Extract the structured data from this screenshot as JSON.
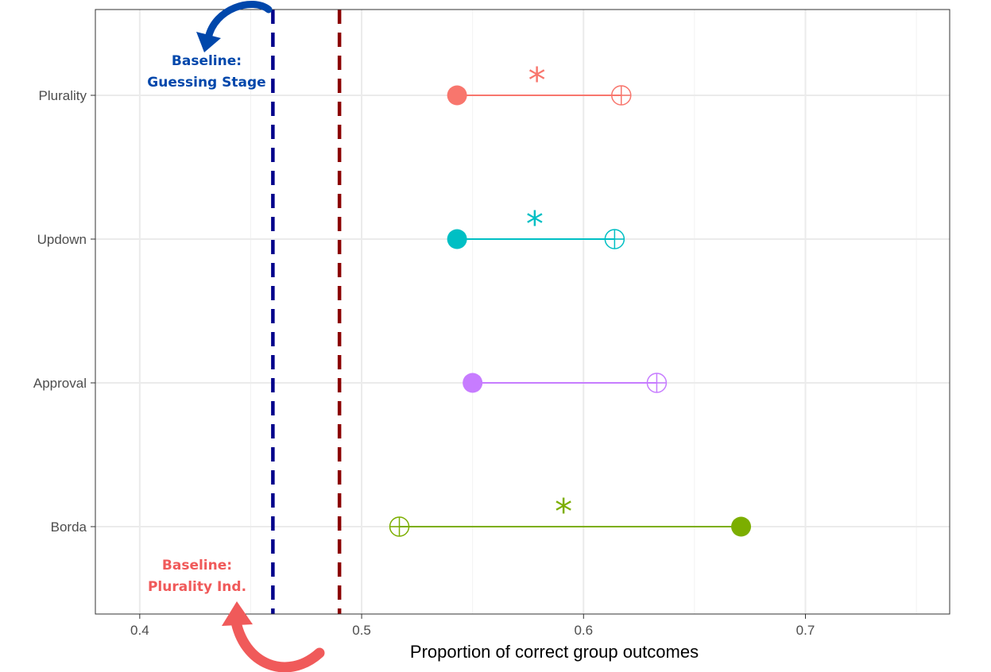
{
  "chart_data": {
    "type": "dumbbell",
    "xlabel": "Proportion of correct group outcomes",
    "xlim": [
      0.38,
      0.765
    ],
    "x_ticks": [
      0.4,
      0.5,
      0.6,
      0.7
    ],
    "x_tick_labels": [
      "0.4",
      "0.5",
      "0.6",
      "0.7"
    ],
    "categories": [
      "Plurality",
      "Updown",
      "Approval",
      "Borda"
    ],
    "grid": true,
    "rows": [
      {
        "category": "Plurality",
        "filled": 0.543,
        "crossed": 0.617,
        "color": "#F8766D",
        "significant": true,
        "star_x": 0.579
      },
      {
        "category": "Updown",
        "filled": 0.543,
        "crossed": 0.614,
        "color": "#00BFC4",
        "significant": true,
        "star_x": 0.578
      },
      {
        "category": "Approval",
        "filled": 0.55,
        "crossed": 0.633,
        "color": "#C77CFF",
        "significant": false
      },
      {
        "category": "Borda",
        "filled": 0.671,
        "crossed": 0.517,
        "color": "#7CAE00",
        "significant": true,
        "star_x": 0.591
      }
    ],
    "star_symbol": "*",
    "baselines": [
      {
        "x": 0.46,
        "color": "#00008B",
        "style": "dashed",
        "label_lines": [
          "Baseline:",
          "Guessing Stage"
        ],
        "label_color": "#0047AB",
        "label_position": "top"
      },
      {
        "x": 0.49,
        "color": "#8B0000",
        "style": "dashed",
        "label_lines": [
          "Baseline:",
          "Plurality Ind."
        ],
        "label_color": "#F05A5A",
        "label_position": "bottom"
      }
    ]
  }
}
